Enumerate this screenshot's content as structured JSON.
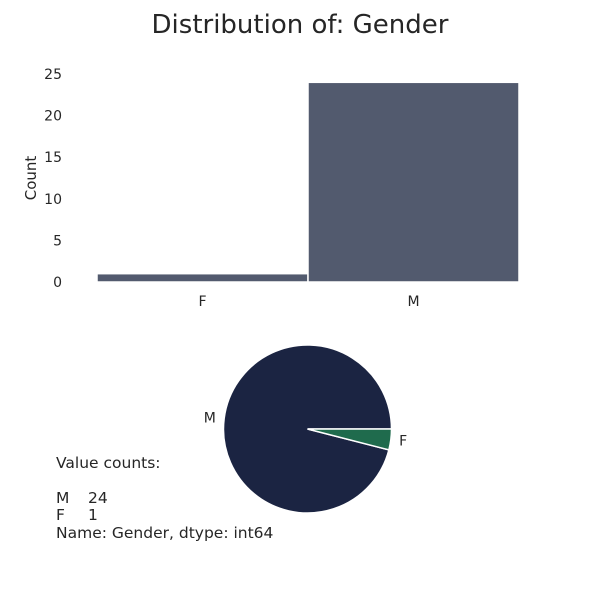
{
  "figure_title": "Distribution of: Gender",
  "colors": {
    "bar": "#525a6e",
    "pie_m": "#1b2442",
    "pie_f": "#1f6b4d",
    "text": "#262626"
  },
  "chart_data": [
    {
      "type": "bar",
      "title": "Distribution of: Gender",
      "categories": [
        "F",
        "M"
      ],
      "values": [
        1,
        24
      ],
      "xlabel": "",
      "ylabel": "Count",
      "ylim": [
        0,
        25
      ],
      "yticks": [
        0,
        5,
        10,
        15,
        20,
        25
      ],
      "grid": false
    },
    {
      "type": "pie",
      "labels": [
        "M",
        "F"
      ],
      "values": [
        24,
        1
      ]
    }
  ],
  "value_counts": {
    "header": "Value counts:",
    "rows": [
      {
        "key": "M",
        "val": "24"
      },
      {
        "key": "F",
        "val": "1"
      }
    ],
    "footer": "Name: Gender, dtype: int64"
  }
}
